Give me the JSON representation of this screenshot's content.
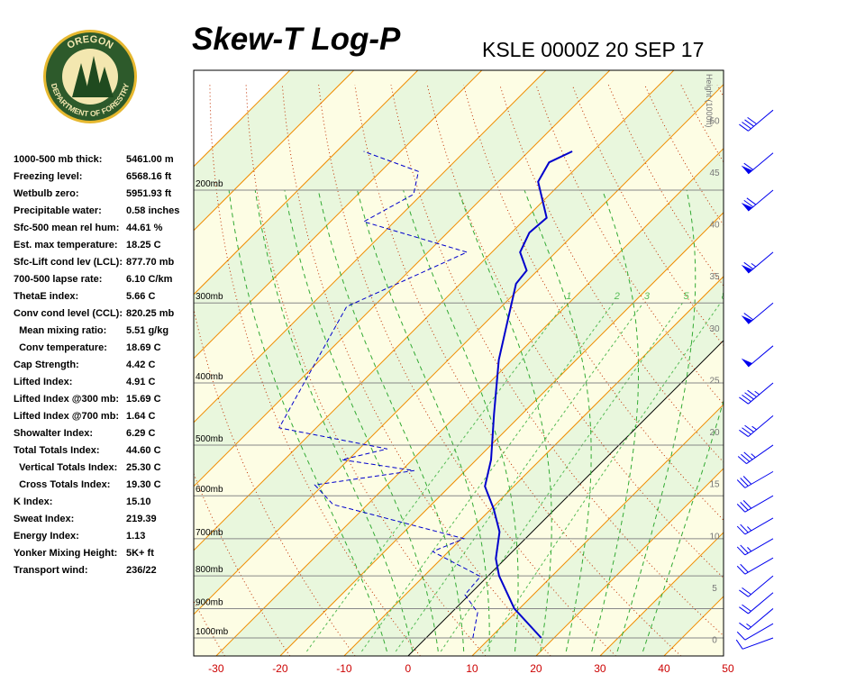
{
  "logo": {
    "top": "OREGON",
    "bottom": "DEPARTMENT OF FORESTRY"
  },
  "stats": {
    "rows": [
      [
        "1000-500 mb thick:",
        "5461.00 m"
      ],
      [
        "Freezing level:",
        "6568.16 ft"
      ],
      [
        "Wetbulb zero:",
        "5951.93 ft"
      ],
      [
        "Precipitable water:",
        "0.58 inches"
      ],
      [
        "Sfc-500 mean rel hum:",
        "44.61 %"
      ],
      [
        "Est. max temperature:",
        "18.25 C"
      ],
      [
        "Sfc-Lift cond lev (LCL):",
        "877.70 mb"
      ],
      [
        "700-500 lapse rate:",
        "6.10 C/km"
      ],
      [
        "ThetaE index:",
        "5.66 C"
      ],
      [
        "Conv cond level (CCL):",
        "820.25 mb"
      ],
      [
        "  Mean mixing ratio:",
        "5.51 g/kg"
      ],
      [
        "  Conv temperature:",
        "18.69 C"
      ],
      [
        "Cap Strength:",
        "4.42 C"
      ],
      [
        "Lifted Index:",
        "4.91 C"
      ],
      [
        "Lifted Index @300 mb:",
        "15.69 C"
      ],
      [
        "Lifted Index @700 mb:",
        "1.64 C"
      ],
      [
        "Showalter Index:",
        "6.29 C"
      ],
      [
        "Total Totals Index:",
        "44.60 C"
      ],
      [
        "  Vertical Totals Index:",
        "25.30 C"
      ],
      [
        "  Cross Totals Index:",
        "19.30 C"
      ],
      [
        "K Index:",
        "15.10"
      ],
      [
        "Sweat Index:",
        "219.39"
      ],
      [
        "Energy Index:",
        "1.13"
      ],
      [
        "Yonker Mixing Height:",
        "5K+ ft"
      ],
      [
        "Transport wind:",
        "236/22"
      ]
    ]
  },
  "chart_data": {
    "type": "skew-t",
    "title": "Skew-T Log-P",
    "subtitle": "KSLE 0000Z 20 SEP 17",
    "xlim": [
      -33.5,
      49.3
    ],
    "xticks": [
      -30,
      -20,
      -10,
      0,
      10,
      20,
      30,
      40,
      50
    ],
    "plim": [
      1067,
      130
    ],
    "pressure_ticks": [
      {
        "value": 1000,
        "label": "1000mb"
      },
      {
        "value": 900,
        "label": "900mb"
      },
      {
        "value": 800,
        "label": "800mb"
      },
      {
        "value": 700,
        "label": "700mb"
      },
      {
        "value": 600,
        "label": "600mb"
      },
      {
        "value": 500,
        "label": "500mb"
      },
      {
        "value": 400,
        "label": "400mb"
      },
      {
        "value": 300,
        "label": "300mb"
      },
      {
        "value": 200,
        "label": "200mb"
      }
    ],
    "y2label": "Height (1000ft)",
    "y2lim": [
      -1.6,
      54.8
    ],
    "y2ticks": [
      0,
      5,
      10,
      15,
      20,
      25,
      30,
      35,
      40,
      45,
      50
    ],
    "mixing_ratio_labels": [
      1,
      2,
      3,
      5,
      8
    ],
    "series": [
      {
        "color": "#0000cc",
        "dash": false,
        "pressure": [
          1000,
          900,
          800,
          752,
          683,
          629,
          580,
          527,
          447,
          368,
          280,
          267,
          250,
          233,
          221,
          194,
          181,
          174
        ],
        "values": [
          18.0,
          9.2,
          1.7,
          -1.5,
          -5.1,
          -9.6,
          -14.5,
          -17.7,
          -24.4,
          -32.1,
          -41.3,
          -41.7,
          -45.6,
          -47.2,
          -46.8,
          -53.8,
          -55.1,
          -53.2
        ]
      },
      {
        "color": "#0000cc",
        "dash": true,
        "pressure": [
          1000,
          913,
          856,
          802,
          733,
          700,
          640,
          619,
          577,
          548,
          527,
          507,
          470,
          304,
          250,
          224,
          203,
          187,
          174
        ],
        "values": [
          7.3,
          4.1,
          -0.7,
          -1.1,
          -12.5,
          -9.6,
          -28.3,
          -35.4,
          -41.3,
          -28,
          -41,
          -35.6,
          -55.8,
          -64.2,
          -53.9,
          -74.8,
          -71.3,
          -74.1,
          -85.8
        ]
      }
    ],
    "winds": {
      "color": "#0000ee",
      "pressure": [
        1000,
        950,
        900,
        850,
        800,
        750,
        700,
        650,
        600,
        550,
        500,
        450,
        400,
        350,
        300,
        250,
        200,
        175,
        150
      ],
      "direction": [
        250,
        240,
        230,
        230,
        230,
        240,
        240,
        240,
        240,
        240,
        235,
        230,
        230,
        230,
        230,
        230,
        230,
        230,
        230
      ],
      "speed": [
        10,
        10,
        15,
        20,
        20,
        20,
        25,
        25,
        30,
        30,
        35,
        35,
        45,
        50,
        60,
        65,
        70,
        60,
        40
      ]
    }
  }
}
